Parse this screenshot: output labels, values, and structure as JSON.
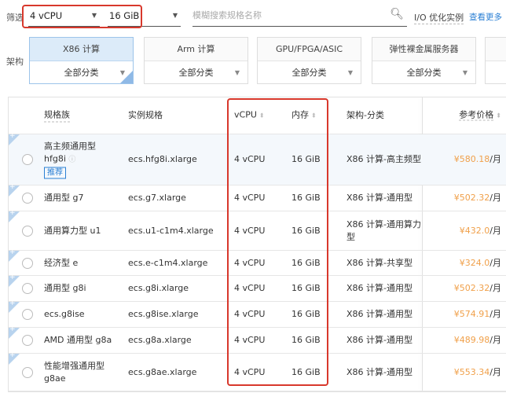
{
  "filter": {
    "label": "筛选",
    "vcpu": "4 vCPU",
    "memory": "16 GiB",
    "search_placeholder": "模糊搜索规格名称",
    "io_label": "I/O 优化实例",
    "more_link": "查看更多"
  },
  "arch": {
    "label": "架构",
    "cards": [
      {
        "title": "X86 计算",
        "sub": "全部分类",
        "active": true
      },
      {
        "title": "Arm 计算",
        "sub": "全部分类"
      },
      {
        "title": "GPU/FPGA/ASIC",
        "sub": "全部分类"
      },
      {
        "title": "弹性裸金属服务器",
        "sub": "全部分类"
      }
    ]
  },
  "table": {
    "headers": {
      "family": "规格族",
      "spec": "实例规格",
      "vcpu": "vCPU",
      "memory": "内存",
      "arch": "架构-分类",
      "price": "参考价格"
    },
    "rows": [
      {
        "family": "高主频通用型",
        "family2": "hfg8i",
        "tag": "推荐",
        "spec": "ecs.hfg8i.xlarge",
        "vcpu": "4 vCPU",
        "memory": "16 GiB",
        "arch": "X86 计算-高主频型",
        "price": "¥580.18",
        "unit": "/月"
      },
      {
        "family": "通用型 g7",
        "spec": "ecs.g7.xlarge",
        "vcpu": "4 vCPU",
        "memory": "16 GiB",
        "arch": "X86 计算-通用型",
        "price": "¥502.32",
        "unit": "/月"
      },
      {
        "family": "通用算力型 u1",
        "spec": "ecs.u1-c1m4.xlarge",
        "vcpu": "4 vCPU",
        "memory": "16 GiB",
        "arch": "X86 计算-通用算力",
        "arch2": "型",
        "price": "¥432.0",
        "unit": "/月"
      },
      {
        "family": "经济型 e",
        "spec": "ecs.e-c1m4.xlarge",
        "vcpu": "4 vCPU",
        "memory": "16 GiB",
        "arch": "X86 计算-共享型",
        "price": "¥324.0",
        "unit": "/月"
      },
      {
        "family": "通用型 g8i",
        "spec": "ecs.g8i.xlarge",
        "vcpu": "4 vCPU",
        "memory": "16 GiB",
        "arch": "X86 计算-通用型",
        "price": "¥502.32",
        "unit": "/月"
      },
      {
        "family": "ecs.g8ise",
        "spec": "ecs.g8ise.xlarge",
        "vcpu": "4 vCPU",
        "memory": "16 GiB",
        "arch": "X86 计算-通用型",
        "price": "¥574.91",
        "unit": "/月"
      },
      {
        "family": "AMD 通用型 g8a",
        "spec": "ecs.g8a.xlarge",
        "vcpu": "4 vCPU",
        "memory": "16 GiB",
        "arch": "X86 计算-通用型",
        "price": "¥489.98",
        "unit": "/月"
      },
      {
        "family": "性能增强通用型",
        "family2": "g8ae",
        "spec": "ecs.g8ae.xlarge",
        "vcpu": "4 vCPU",
        "memory": "16 GiB",
        "arch": "X86 计算-通用型",
        "price": "¥553.34",
        "unit": "/月"
      }
    ]
  },
  "colors": {
    "highlight": "#d8382c",
    "link": "#2a7fd4",
    "price": "#f0a04a"
  }
}
